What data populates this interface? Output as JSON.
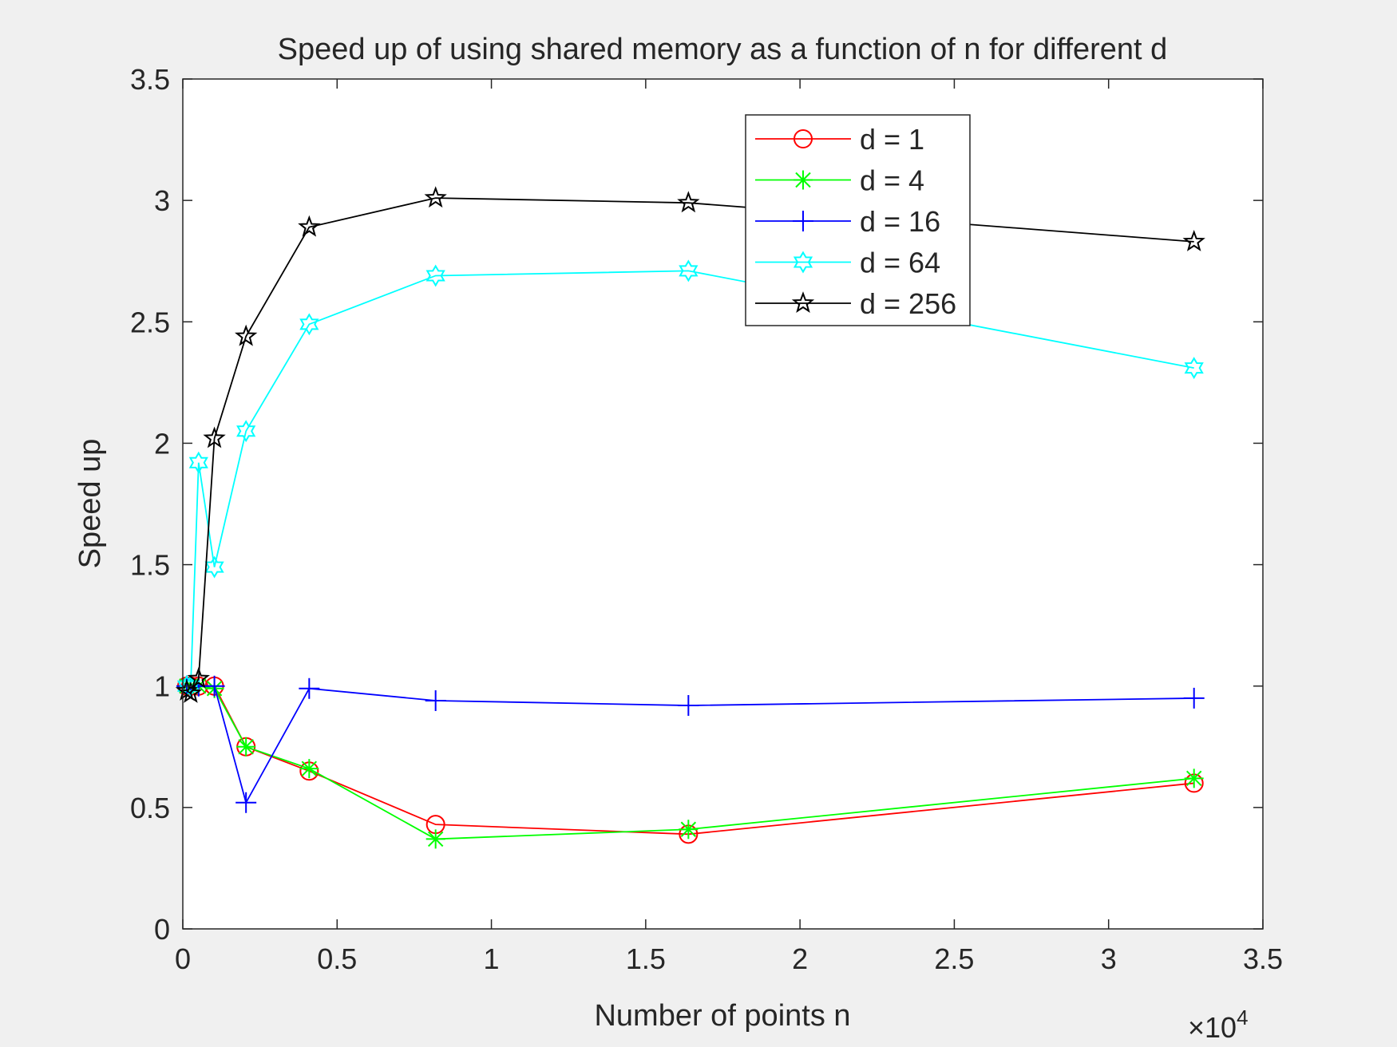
{
  "chart_data": {
    "type": "line",
    "title": "Speed up of using shared memory as a function of n for different d",
    "xlabel": "Number of points n",
    "ylabel": "Speed up",
    "x_exponent_label": "×10",
    "x_exponent_power": "4",
    "xlim": [
      0,
      35000
    ],
    "ylim": [
      0,
      3.5
    ],
    "x_ticks": [
      0,
      5000,
      10000,
      15000,
      20000,
      25000,
      30000,
      35000
    ],
    "x_tick_labels": [
      "0",
      "0.5",
      "1",
      "1.5",
      "2",
      "2.5",
      "3",
      "3.5"
    ],
    "y_ticks": [
      0,
      0.5,
      1,
      1.5,
      2,
      2.5,
      3,
      3.5
    ],
    "y_tick_labels": [
      "0",
      "0.5",
      "1",
      "1.5",
      "2",
      "2.5",
      "3",
      "3.5"
    ],
    "grid": false,
    "legend_position": "top-right",
    "x": [
      128,
      256,
      512,
      1024,
      2048,
      4096,
      8192,
      16384,
      32768
    ],
    "series": [
      {
        "name": "d = 1",
        "color": "#ff0000",
        "marker": "circle",
        "values": [
          1.0,
          1.0,
          1.0,
          1.0,
          0.75,
          0.65,
          0.43,
          0.39,
          0.6
        ]
      },
      {
        "name": "d = 4",
        "color": "#00ff00",
        "marker": "asterisk",
        "values": [
          1.0,
          1.0,
          1.0,
          0.99,
          0.75,
          0.66,
          0.37,
          0.41,
          0.62
        ]
      },
      {
        "name": "d = 16",
        "color": "#0000ff",
        "marker": "plus",
        "values": [
          1.0,
          1.0,
          1.0,
          1.0,
          0.52,
          0.99,
          0.94,
          0.92,
          0.95
        ]
      },
      {
        "name": "d = 64",
        "color": "#00ffff",
        "marker": "hexagram",
        "values": [
          1.0,
          1.0,
          1.92,
          1.49,
          2.05,
          2.49,
          2.69,
          2.71,
          2.31
        ]
      },
      {
        "name": "d = 256",
        "color": "#000000",
        "marker": "pentagram",
        "values": [
          0.98,
          0.97,
          1.03,
          2.02,
          2.44,
          2.89,
          3.01,
          2.99,
          2.83
        ]
      }
    ]
  }
}
